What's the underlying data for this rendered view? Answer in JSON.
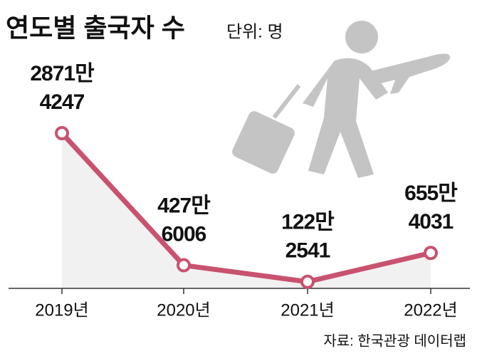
{
  "chart_data": {
    "type": "line",
    "title": "연도별 출국자 수",
    "subtitle": "단위: 명",
    "source": "자료: 한국관광 데이터랩",
    "categories": [
      "2019년",
      "2020년",
      "2021년",
      "2022년"
    ],
    "values": [
      28714247,
      4276006,
      1222541,
      6554031
    ],
    "value_labels": [
      [
        "2871만",
        "4247"
      ],
      [
        "427만",
        "6006"
      ],
      [
        "122만",
        "2541"
      ],
      [
        "655만",
        "4031"
      ]
    ],
    "color": "#c8526f"
  }
}
